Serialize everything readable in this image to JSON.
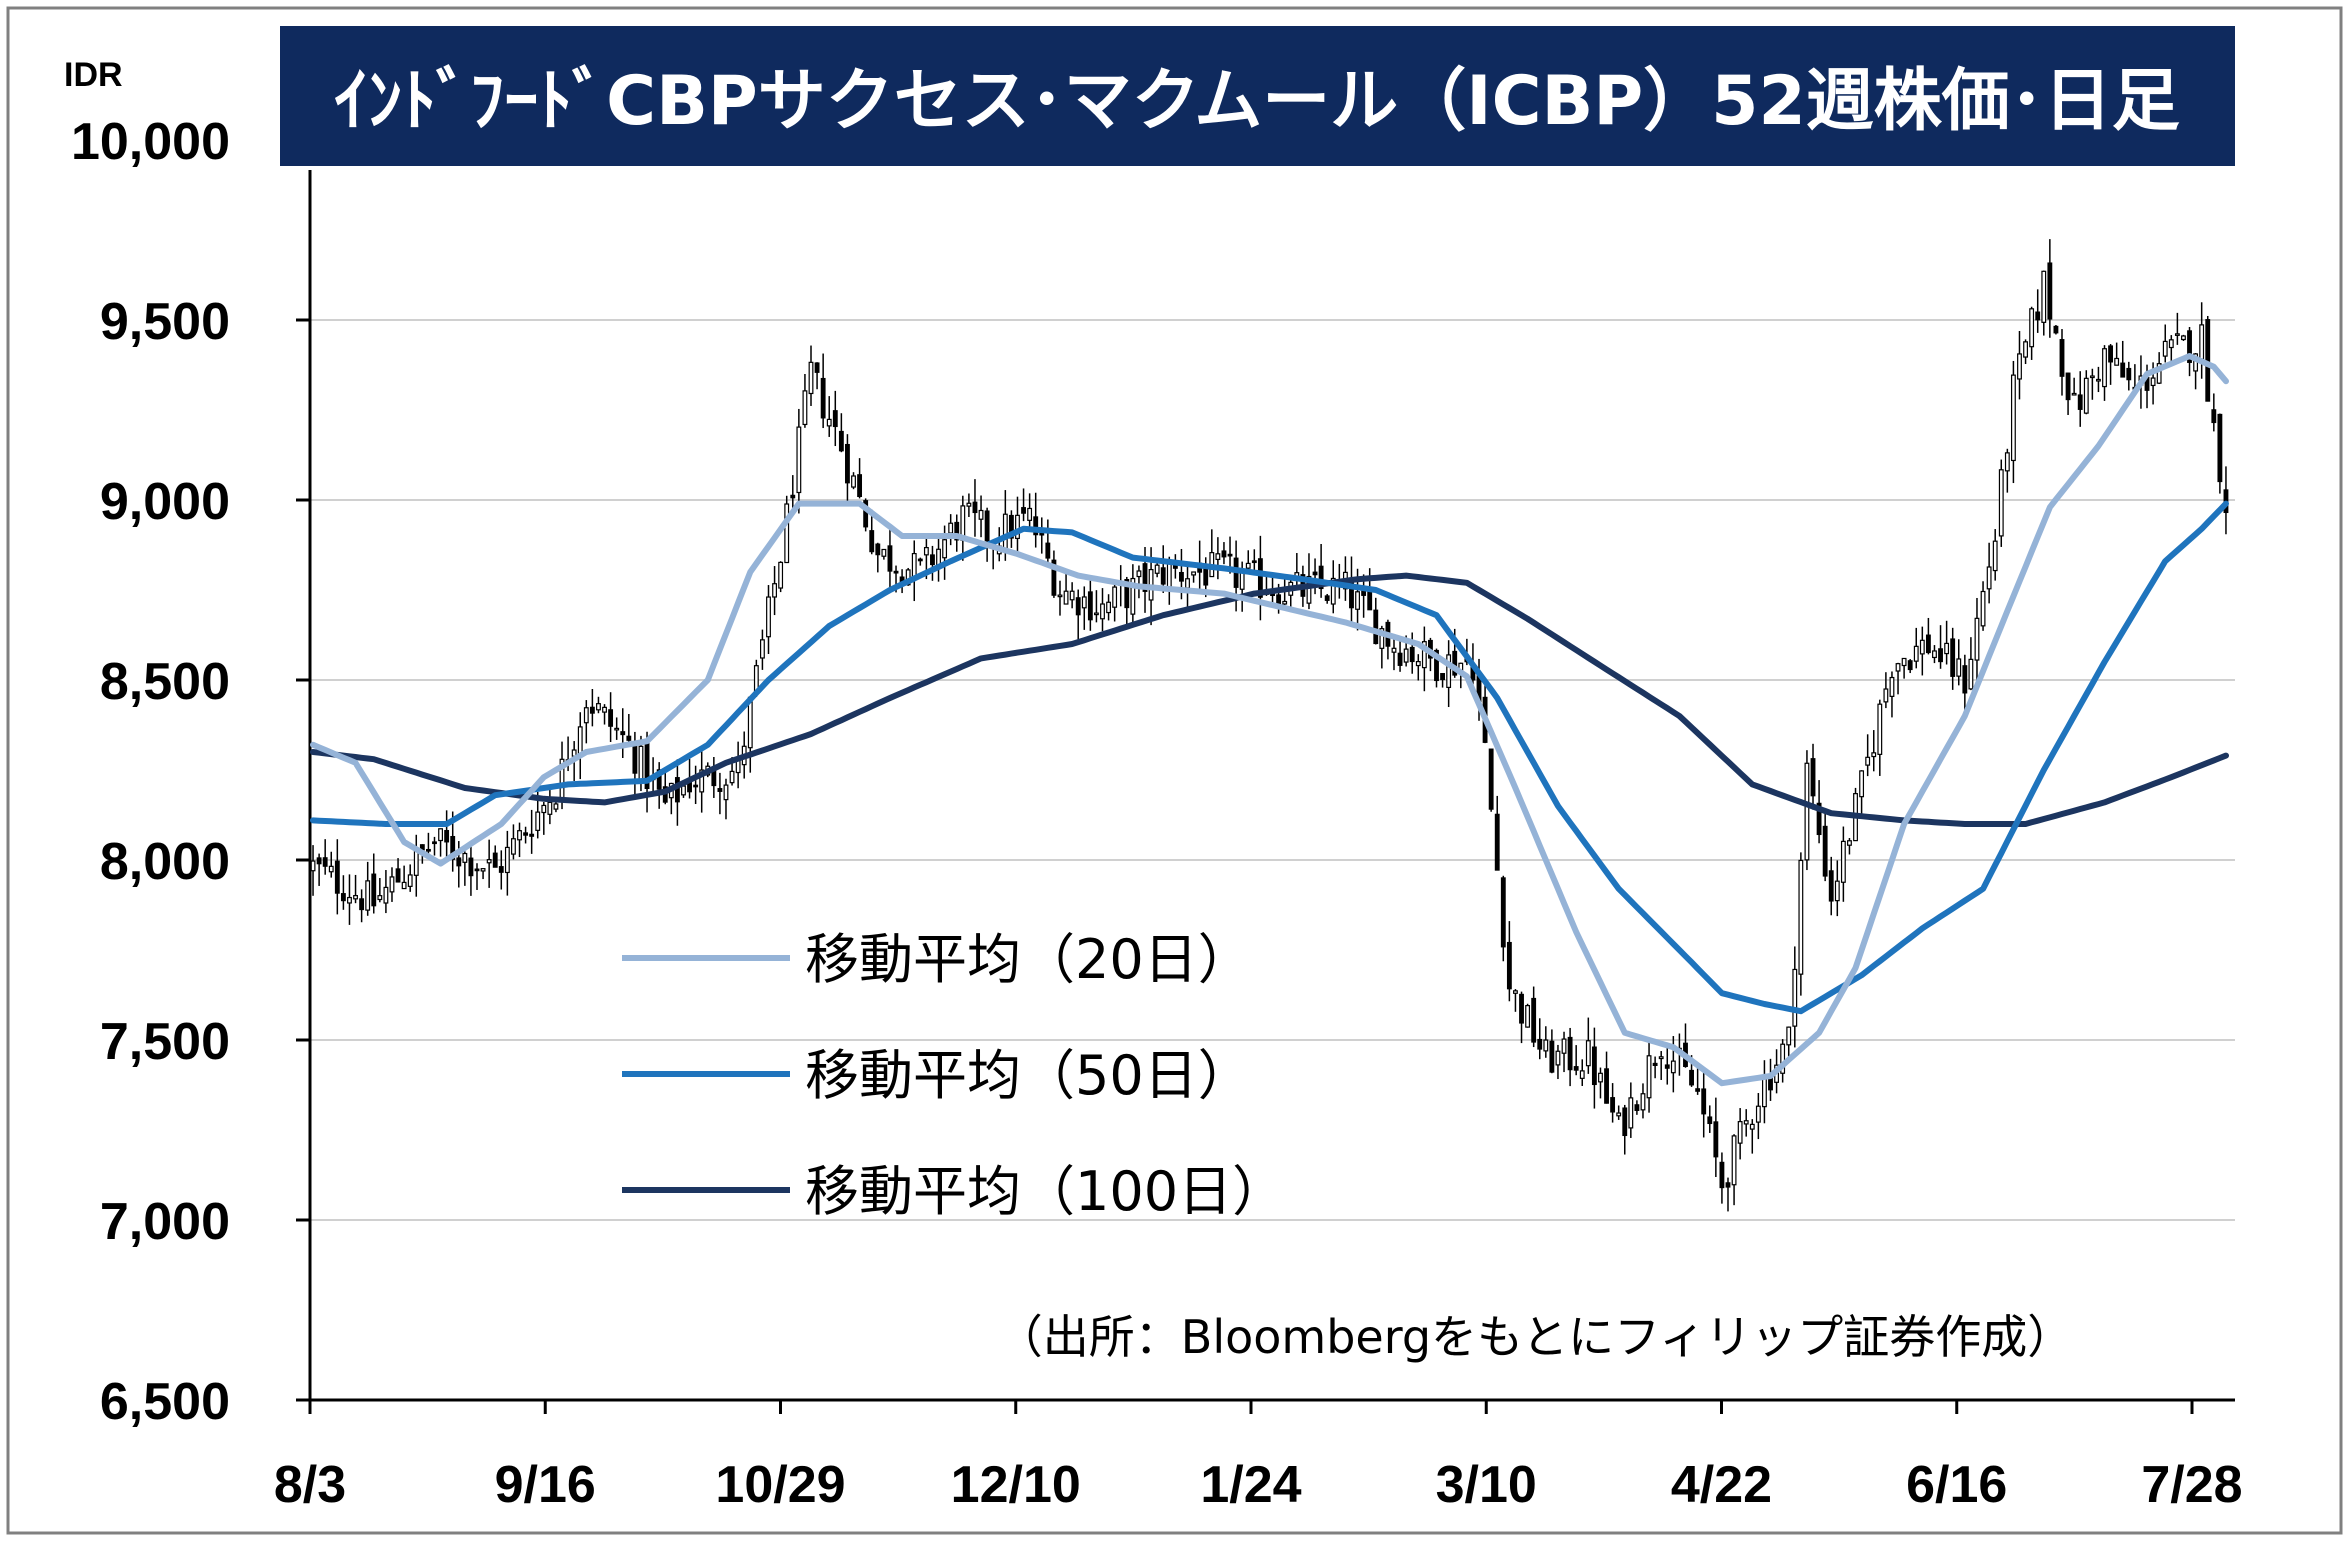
{
  "chart_data": {
    "type": "candlestick",
    "title": "ｲﾝﾄﾞﾌｰﾄﾞCBPサクセス･マクムール（ICBP）52週株価･日足",
    "unit_label": "IDR",
    "source": "（出所：Bloombergをもとにフィリップ証券作成）",
    "ylim": [
      6500,
      10000
    ],
    "y_ticks": [
      6500,
      7000,
      7500,
      8000,
      8500,
      9000,
      9500,
      10000
    ],
    "y_tick_labels": [
      "6,500",
      "7,000",
      "7,500",
      "8,000",
      "8,500",
      "9,000",
      "9,500",
      "10,000"
    ],
    "x_tick_labels": [
      "8/3",
      "9/16",
      "10/29",
      "12/10",
      "1/24",
      "3/10",
      "4/22",
      "6/16",
      "7/28"
    ],
    "grid": true,
    "colors": {
      "title_bg": "#0f2a5e",
      "ma20": "#95b3d7",
      "ma50": "#1f74bd",
      "ma100": "#1c3560",
      "candle": "#000000",
      "grid": "#d0d0d0"
    },
    "legend": [
      {
        "label": "移動平均（20日）",
        "series": "ma20"
      },
      {
        "label": "移動平均（50日）",
        "series": "ma50"
      },
      {
        "label": "移動平均（100日）",
        "series": "ma100"
      }
    ],
    "price_path": [
      [
        0,
        7980
      ],
      [
        10,
        7880
      ],
      [
        20,
        8050
      ],
      [
        30,
        7970
      ],
      [
        40,
        8200
      ],
      [
        45,
        8450
      ],
      [
        52,
        8320
      ],
      [
        58,
        8150
      ],
      [
        62,
        8220
      ],
      [
        70,
        8250
      ],
      [
        77,
        8850
      ],
      [
        82,
        9350
      ],
      [
        87,
        9150
      ],
      [
        93,
        8850
      ],
      [
        100,
        8800
      ],
      [
        107,
        8950
      ],
      [
        112,
        8900
      ],
      [
        118,
        8950
      ],
      [
        123,
        8750
      ],
      [
        130,
        8700
      ],
      [
        140,
        8800
      ],
      [
        150,
        8800
      ],
      [
        160,
        8750
      ],
      [
        170,
        8750
      ],
      [
        178,
        8600
      ],
      [
        185,
        8550
      ],
      [
        191,
        8550
      ],
      [
        193,
        8300
      ],
      [
        197,
        7650
      ],
      [
        203,
        7450
      ],
      [
        210,
        7450
      ],
      [
        215,
        7250
      ],
      [
        222,
        7500
      ],
      [
        228,
        7350
      ],
      [
        232,
        7100
      ],
      [
        238,
        7350
      ],
      [
        243,
        7500
      ],
      [
        246,
        8250
      ],
      [
        250,
        7900
      ],
      [
        255,
        8200
      ],
      [
        260,
        8550
      ],
      [
        266,
        8600
      ],
      [
        272,
        8500
      ],
      [
        277,
        8900
      ],
      [
        280,
        9300
      ],
      [
        285,
        9600
      ],
      [
        290,
        9250
      ],
      [
        295,
        9400
      ],
      [
        300,
        9300
      ],
      [
        305,
        9400
      ],
      [
        311,
        9450
      ],
      [
        313,
        9200
      ],
      [
        316,
        8900
      ]
    ],
    "ma20": [
      [
        0,
        8320
      ],
      [
        7,
        8270
      ],
      [
        15,
        8050
      ],
      [
        21,
        7990
      ],
      [
        31,
        8100
      ],
      [
        38,
        8230
      ],
      [
        45,
        8300
      ],
      [
        55,
        8330
      ],
      [
        65,
        8500
      ],
      [
        72,
        8800
      ],
      [
        80,
        8990
      ],
      [
        90,
        8990
      ],
      [
        97,
        8900
      ],
      [
        106,
        8900
      ],
      [
        116,
        8850
      ],
      [
        126,
        8790
      ],
      [
        136,
        8760
      ],
      [
        150,
        8740
      ],
      [
        160,
        8700
      ],
      [
        170,
        8660
      ],
      [
        182,
        8600
      ],
      [
        190,
        8510
      ],
      [
        198,
        8200
      ],
      [
        208,
        7800
      ],
      [
        216,
        7520
      ],
      [
        224,
        7480
      ],
      [
        232,
        7380
      ],
      [
        240,
        7400
      ],
      [
        248,
        7520
      ],
      [
        254,
        7700
      ],
      [
        262,
        8100
      ],
      [
        272,
        8400
      ],
      [
        278,
        8650
      ],
      [
        286,
        8980
      ],
      [
        294,
        9150
      ],
      [
        302,
        9350
      ],
      [
        309,
        9400
      ],
      [
        313,
        9370
      ],
      [
        315,
        9330
      ]
    ],
    "ma50": [
      [
        0,
        8110
      ],
      [
        12,
        8100
      ],
      [
        22,
        8100
      ],
      [
        30,
        8180
      ],
      [
        42,
        8210
      ],
      [
        55,
        8220
      ],
      [
        65,
        8320
      ],
      [
        75,
        8500
      ],
      [
        85,
        8650
      ],
      [
        95,
        8750
      ],
      [
        105,
        8830
      ],
      [
        117,
        8920
      ],
      [
        125,
        8910
      ],
      [
        135,
        8840
      ],
      [
        150,
        8810
      ],
      [
        163,
        8780
      ],
      [
        175,
        8750
      ],
      [
        185,
        8680
      ],
      [
        195,
        8450
      ],
      [
        205,
        8150
      ],
      [
        215,
        7920
      ],
      [
        225,
        7750
      ],
      [
        232,
        7630
      ],
      [
        239,
        7600
      ],
      [
        245,
        7580
      ],
      [
        255,
        7680
      ],
      [
        265,
        7810
      ],
      [
        275,
        7920
      ],
      [
        285,
        8250
      ],
      [
        295,
        8550
      ],
      [
        305,
        8830
      ],
      [
        311,
        8920
      ],
      [
        315,
        8990
      ]
    ],
    "ma100": [
      [
        0,
        8300
      ],
      [
        10,
        8280
      ],
      [
        25,
        8200
      ],
      [
        38,
        8170
      ],
      [
        48,
        8160
      ],
      [
        58,
        8190
      ],
      [
        68,
        8270
      ],
      [
        82,
        8350
      ],
      [
        95,
        8450
      ],
      [
        110,
        8560
      ],
      [
        125,
        8600
      ],
      [
        140,
        8680
      ],
      [
        155,
        8740
      ],
      [
        172,
        8780
      ],
      [
        180,
        8790
      ],
      [
        190,
        8770
      ],
      [
        200,
        8670
      ],
      [
        212,
        8540
      ],
      [
        225,
        8400
      ],
      [
        237,
        8210
      ],
      [
        250,
        8130
      ],
      [
        262,
        8110
      ],
      [
        272,
        8100
      ],
      [
        282,
        8100
      ],
      [
        295,
        8160
      ],
      [
        306,
        8230
      ],
      [
        315,
        8290
      ]
    ]
  }
}
